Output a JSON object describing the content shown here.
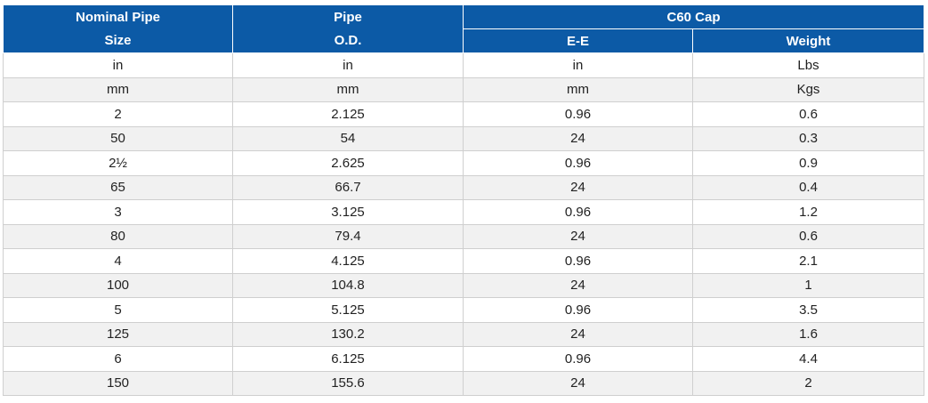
{
  "header": {
    "col1_line1": "Nominal Pipe",
    "col1_line2": "Size",
    "col2_line1": "Pipe",
    "col2_line2": "O.D.",
    "group": "C60 Cap",
    "col3": "E-E",
    "col4": "Weight"
  },
  "rows": [
    [
      "in",
      "in",
      "in",
      "Lbs"
    ],
    [
      "mm",
      "mm",
      "mm",
      "Kgs"
    ],
    [
      "2",
      "2.125",
      "0.96",
      "0.6"
    ],
    [
      "50",
      "54",
      "24",
      "0.3"
    ],
    [
      "2½",
      "2.625",
      "0.96",
      "0.9"
    ],
    [
      "65",
      "66.7",
      "24",
      "0.4"
    ],
    [
      "3",
      "3.125",
      "0.96",
      "1.2"
    ],
    [
      "80",
      "79.4",
      "24",
      "0.6"
    ],
    [
      "4",
      "4.125",
      "0.96",
      "2.1"
    ],
    [
      "100",
      "104.8",
      "24",
      "1"
    ],
    [
      "5",
      "5.125",
      "0.96",
      "3.5"
    ],
    [
      "125",
      "130.2",
      "24",
      "1.6"
    ],
    [
      "6",
      "6.125",
      "0.96",
      "4.4"
    ],
    [
      "150",
      "155.6",
      "24",
      "2"
    ]
  ]
}
